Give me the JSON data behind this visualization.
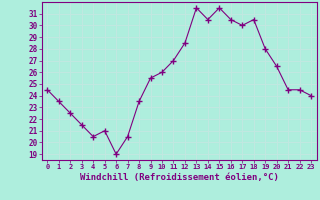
{
  "x": [
    0,
    1,
    2,
    3,
    4,
    5,
    6,
    7,
    8,
    9,
    10,
    11,
    12,
    13,
    14,
    15,
    16,
    17,
    18,
    19,
    20,
    21,
    22,
    23
  ],
  "y": [
    24.5,
    23.5,
    22.5,
    21.5,
    20.5,
    21.0,
    19.0,
    20.5,
    23.5,
    25.5,
    26.0,
    27.0,
    28.5,
    31.5,
    30.5,
    31.5,
    30.5,
    30.0,
    30.5,
    28.0,
    26.5,
    24.5,
    24.5,
    24.0
  ],
  "line_color": "#800080",
  "marker": "+",
  "marker_size": 4,
  "bg_color": "#aeeedd",
  "grid_color": "#c0e8e0",
  "tick_label_color": "#800080",
  "xlabel": "Windchill (Refroidissement éolien,°C)",
  "xlabel_fontsize": 6.5,
  "ylabel_ticks": [
    19,
    20,
    21,
    22,
    23,
    24,
    25,
    26,
    27,
    28,
    29,
    30,
    31
  ],
  "ylim": [
    18.5,
    32.0
  ],
  "xlim": [
    -0.5,
    23.5
  ],
  "xticks": [
    0,
    1,
    2,
    3,
    4,
    5,
    6,
    7,
    8,
    9,
    10,
    11,
    12,
    13,
    14,
    15,
    16,
    17,
    18,
    19,
    20,
    21,
    22,
    23
  ]
}
